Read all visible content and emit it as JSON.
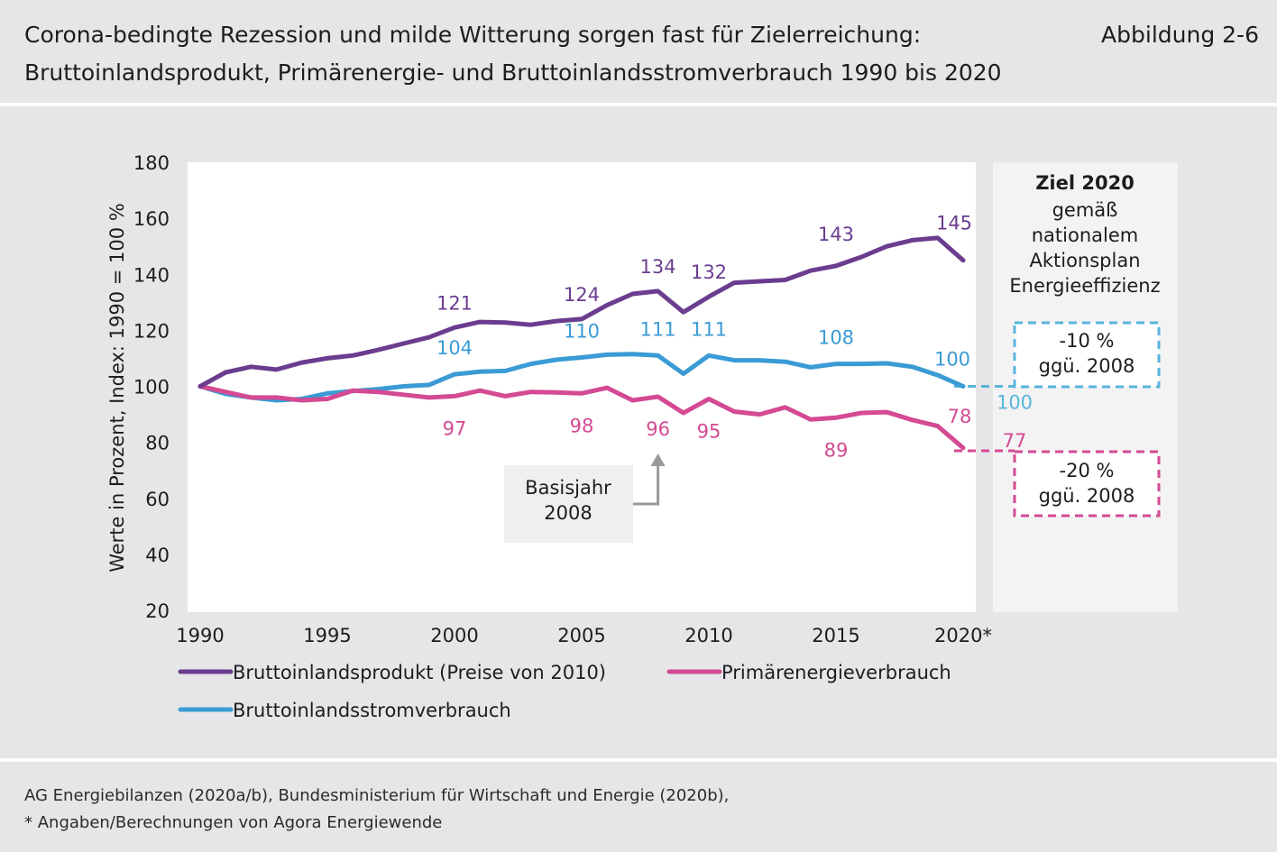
{
  "header": {
    "title_line1": "Corona-bedingte Rezession und milde Witterung sorgen fast für Zielerreichung:",
    "title_line2": "Bruttoinlandsprodukt, Primärenergie- und Bruttoinlandsstromverbrauch 1990 bis 2020",
    "figure_number": "Abbildung 2-6"
  },
  "footer": {
    "source_line": "AG Energiebilanzen (2020a/b), Bundesministerium für Wirtschaft und Energie (2020b),",
    "note_line": "* Angaben/Berechnungen von Agora Energiewende"
  },
  "chart_data": {
    "type": "line",
    "ylabel": "Werte in Prozent, Index: 1990 = 100 %",
    "ylim": [
      20,
      180
    ],
    "yticks": [
      "20",
      "40",
      "60",
      "80",
      "100",
      "120",
      "140",
      "160",
      "180"
    ],
    "xlim": [
      1990,
      2020
    ],
    "xticks": [
      {
        "x": 1990,
        "label": "1990"
      },
      {
        "x": 1995,
        "label": "1995"
      },
      {
        "x": 2000,
        "label": "2000"
      },
      {
        "x": 2005,
        "label": "2005"
      },
      {
        "x": 2010,
        "label": "2010"
      },
      {
        "x": 2015,
        "label": "2015"
      },
      {
        "x": 2020,
        "label": "2020*"
      }
    ],
    "grid": false,
    "x": [
      1990,
      1991,
      1992,
      1993,
      1994,
      1995,
      1996,
      1997,
      1998,
      1999,
      2000,
      2001,
      2002,
      2003,
      2004,
      2005,
      2006,
      2007,
      2008,
      2009,
      2010,
      2011,
      2012,
      2013,
      2014,
      2015,
      2016,
      2017,
      2018,
      2019,
      2020
    ],
    "series": [
      {
        "name": "Bruttoinlandsprodukt (Preise von 2010)",
        "color": "#6a3d8f",
        "values": [
          100,
          105,
          107,
          106,
          108.5,
          110,
          111,
          113,
          115.3,
          117.5,
          121,
          123,
          122.8,
          122,
          123.3,
          124,
          129,
          133,
          134,
          126.5,
          132,
          137,
          137.5,
          138,
          141.3,
          143,
          146.2,
          150,
          152.2,
          153,
          145
        ],
        "labels": [
          {
            "x": 2000,
            "text": "121"
          },
          {
            "x": 2005,
            "text": "124"
          },
          {
            "x": 2008,
            "text": "134"
          },
          {
            "x": 2010,
            "text": "132"
          },
          {
            "x": 2015,
            "text": "143"
          },
          {
            "x": 2020,
            "text": "145"
          }
        ]
      },
      {
        "name": "Primärenergieverbrauch",
        "color": "#d44a93",
        "values": [
          100,
          98,
          96,
          96,
          95,
          95.5,
          98.5,
          98,
          97,
          96,
          96.5,
          98.5,
          96.5,
          98,
          97.8,
          97.5,
          99.5,
          95,
          96.3,
          90.5,
          95.5,
          91,
          90,
          92.5,
          88.2,
          88.8,
          90.5,
          90.8,
          88,
          85.8,
          78
        ],
        "labels": [
          {
            "x": 2000,
            "text": "97"
          },
          {
            "x": 2005,
            "text": "98"
          },
          {
            "x": 2008,
            "text": "96"
          },
          {
            "x": 2010,
            "text": "95"
          },
          {
            "x": 2015,
            "text": "89"
          },
          {
            "x": 2020,
            "text": "78"
          }
        ]
      },
      {
        "name": "Bruttoinlandsstromverbrauch",
        "color": "#3a9bd5",
        "values": [
          100,
          97.3,
          96,
          95,
          95.5,
          97.5,
          98.3,
          99,
          100,
          100.5,
          104.3,
          105.2,
          105.5,
          108,
          109.5,
          110.3,
          111.3,
          111.5,
          111,
          104.5,
          111,
          109.3,
          109.3,
          108.8,
          106.8,
          108,
          108,
          108.2,
          107,
          104,
          100
        ],
        "labels": [
          {
            "x": 2000,
            "text": "104"
          },
          {
            "x": 2005,
            "text": "110"
          },
          {
            "x": 2008,
            "text": "111"
          },
          {
            "x": 2010,
            "text": "111"
          },
          {
            "x": 2015,
            "text": "108"
          },
          {
            "x": 2020,
            "text": "100"
          }
        ]
      }
    ],
    "annotations": {
      "basisjahr_line1": "Basisjahr",
      "basisjahr_line2": "2008",
      "target_panel": {
        "title": "Ziel 2020",
        "lines": [
          "gemäß",
          "nationalem",
          "Aktionsplan",
          "Energieeffizienz"
        ]
      },
      "target_strom": {
        "value": 100,
        "label": "100",
        "box_line1": "-10 %",
        "box_line2": "ggü. 2008",
        "color": "#5ab4dd"
      },
      "target_primaer": {
        "value": 77,
        "label": "77",
        "box_line1": "-20 %",
        "box_line2": "ggü. 2008",
        "color": "#d44a93"
      }
    },
    "legend_position": "bottom"
  }
}
